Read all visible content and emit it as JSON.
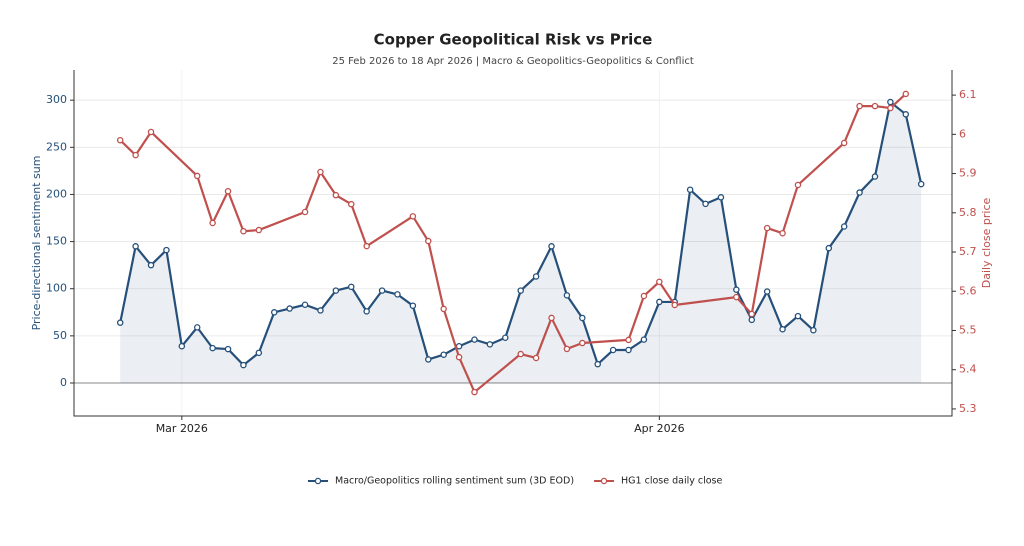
{
  "chart_data": {
    "type": "line",
    "title": "Copper Geopolitical Risk vs Price",
    "subtitle": "25 Feb 2026 to 18 Apr 2026 | Macro & Geopolitics-Geopolitics & Conflict",
    "ylabel": "Price-directional sentiment sum",
    "y2label": "Daily close price",
    "xlim": [
      "2026-02-22",
      "2026-04-20"
    ],
    "xticks": [
      {
        "value": "2026-03-01",
        "label": "Mar 2026"
      },
      {
        "value": "2026-04-01",
        "label": "Apr 2026"
      }
    ],
    "ylim": [
      -35,
      332
    ],
    "yticks": [
      0,
      50,
      100,
      150,
      200,
      250,
      300
    ],
    "y2lim": [
      5.282,
      6.164
    ],
    "y2ticks": [
      5.3,
      5.4,
      5.5,
      5.6,
      5.7,
      5.8,
      5.9,
      6.0,
      6.1
    ],
    "grid": true,
    "legend": "bottom",
    "series": [
      {
        "name": "Macro/Geopolitics rolling sentiment sum (3D EOD)",
        "color": "#26507a",
        "axis": "y",
        "fill": true,
        "x": [
          "2026-02-25",
          "2026-02-26",
          "2026-02-27",
          "2026-02-28",
          "2026-03-01",
          "2026-03-02",
          "2026-03-03",
          "2026-03-04",
          "2026-03-05",
          "2026-03-06",
          "2026-03-07",
          "2026-03-08",
          "2026-03-09",
          "2026-03-10",
          "2026-03-11",
          "2026-03-12",
          "2026-03-13",
          "2026-03-14",
          "2026-03-15",
          "2026-03-16",
          "2026-03-17",
          "2026-03-18",
          "2026-03-19",
          "2026-03-20",
          "2026-03-21",
          "2026-03-22",
          "2026-03-23",
          "2026-03-24",
          "2026-03-25",
          "2026-03-26",
          "2026-03-27",
          "2026-03-28",
          "2026-03-29",
          "2026-03-30",
          "2026-03-31",
          "2026-04-01",
          "2026-04-02",
          "2026-04-03",
          "2026-04-04",
          "2026-04-05",
          "2026-04-06",
          "2026-04-07",
          "2026-04-08",
          "2026-04-09",
          "2026-04-10",
          "2026-04-11",
          "2026-04-12",
          "2026-04-13",
          "2026-04-14",
          "2026-04-15",
          "2026-04-16",
          "2026-04-17",
          "2026-04-18"
        ],
        "values": [
          64,
          145,
          125,
          141,
          39,
          59,
          37,
          36,
          19,
          32,
          75,
          79,
          83,
          77,
          98,
          102,
          76,
          98,
          94,
          82,
          25,
          30,
          39,
          46,
          41,
          48,
          98,
          113,
          145,
          93,
          69,
          20,
          35,
          35,
          46,
          86,
          86,
          205,
          190,
          197,
          99,
          67,
          97,
          57,
          71,
          56,
          143,
          166,
          202,
          219,
          298,
          285,
          211
        ]
      },
      {
        "name": "HG1 close daily close",
        "color": "#c0504d",
        "axis": "y2",
        "fill": false,
        "x": [
          "2026-02-25",
          "2026-02-26",
          "2026-02-27",
          "2026-03-02",
          "2026-03-03",
          "2026-03-04",
          "2026-03-05",
          "2026-03-06",
          "2026-03-09",
          "2026-03-10",
          "2026-03-11",
          "2026-03-12",
          "2026-03-13",
          "2026-03-16",
          "2026-03-17",
          "2026-03-18",
          "2026-03-19",
          "2026-03-20",
          "2026-03-23",
          "2026-03-24",
          "2026-03-25",
          "2026-03-26",
          "2026-03-27",
          "2026-03-30",
          "2026-03-31",
          "2026-04-01",
          "2026-04-02",
          "2026-04-06",
          "2026-04-07",
          "2026-04-08",
          "2026-04-09",
          "2026-04-10",
          "2026-04-13",
          "2026-04-14",
          "2026-04-15",
          "2026-04-16",
          "2026-04-17"
        ],
        "values": [
          5.985,
          5.947,
          6.006,
          5.894,
          5.774,
          5.855,
          5.753,
          5.756,
          5.802,
          5.904,
          5.845,
          5.822,
          5.715,
          5.791,
          5.728,
          5.555,
          5.432,
          5.343,
          5.44,
          5.43,
          5.532,
          5.453,
          5.468,
          5.476,
          5.588,
          5.624,
          5.565,
          5.585,
          5.542,
          5.761,
          5.748,
          5.871,
          5.978,
          6.072,
          6.072,
          6.067,
          6.103
        ]
      }
    ]
  }
}
